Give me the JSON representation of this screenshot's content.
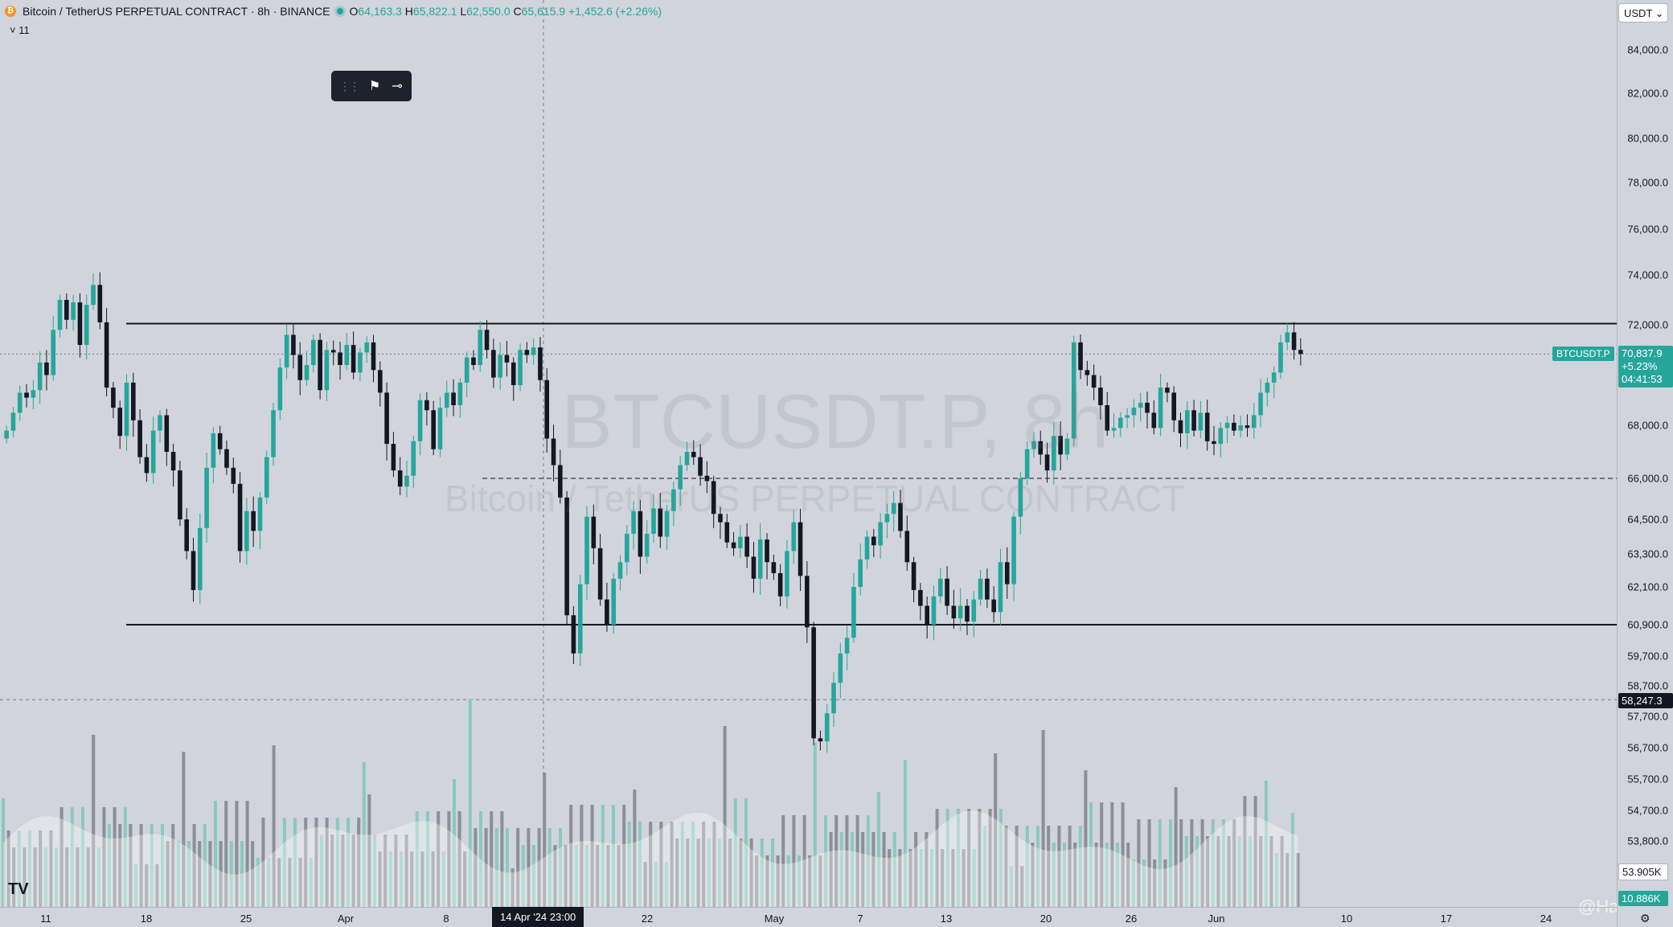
{
  "legend": {
    "symbol": "Bitcoin / TetherUS PERPETUAL CONTRACT · 8h · BINANCE",
    "o_label": "O",
    "o_value": "64,163.3",
    "h_label": "H",
    "h_value": "65,822.1",
    "l_label": "L",
    "l_value": "62,550.0",
    "c_label": "C",
    "c_value": "65,615.9",
    "change": "+1,452.6 (+2.26%)",
    "indicator_toggle": "˅ 11"
  },
  "watermark": {
    "ticker": "BTCUSDT.P, 8h",
    "name": "Bitcoin / TetherUS PERPETUAL CONTRACT"
  },
  "currency_select": "USDT ⌄",
  "price_axis": {
    "ticks": [
      "84,000.0",
      "82,000.0",
      "80,000.0",
      "78,000.0",
      "76,000.0",
      "74,000.0",
      "72,000.0",
      "68,000.0",
      "66,000.0",
      "64,500.0",
      "63,300.0",
      "62,100.0",
      "60,900.0",
      "59,700.0",
      "58,700.0",
      "57,700.0",
      "56,700.0",
      "55,700.0",
      "54,700.0",
      "53,800.0"
    ],
    "last_price": "70,837.9",
    "last_change": "+5.23%",
    "countdown": "04:41:53",
    "symbol_tag": "BTCUSDT.P",
    "crosshair_price": "58,247.3",
    "volume_ma": "53.905K",
    "volume": "10.886K"
  },
  "time_axis": {
    "ticks": [
      "11",
      "18",
      "25",
      "Apr",
      "8",
      "22",
      "May",
      "7",
      "13",
      "20",
      "26",
      "Jun",
      "10",
      "17",
      "24"
    ],
    "crosshair_time": "14 Apr '24   23:00"
  },
  "drawing_toolbar": {
    "grip": "⋮⋮",
    "tool1": "⚑",
    "tool2": "⊸"
  },
  "credit": "@Hanz",
  "tv_logo": "TV",
  "chart_data": {
    "type": "candlestick",
    "title": "Bitcoin / TetherUS PERPETUAL CONTRACT · 8h · BINANCE",
    "timeframe": "8h",
    "ylim": [
      55500,
      84500
    ],
    "up_color": "#26a69a",
    "down_color": "#131722",
    "support_level": 60900,
    "resistance_level": 72050,
    "mid_level": 66000,
    "last_price": 70837.9,
    "crosshair_price": 58247.3,
    "closes": [
      67800,
      68500,
      69300,
      69100,
      69400,
      70500,
      70000,
      71800,
      73000,
      72200,
      72900,
      71200,
      72800,
      73600,
      72100,
      69500,
      68700,
      67600,
      69700,
      68200,
      66800,
      66200,
      67800,
      68400,
      67000,
      66300,
      64500,
      63400,
      62000,
      64200,
      66400,
      67700,
      67100,
      66400,
      65800,
      63400,
      64800,
      64100,
      65300,
      66800,
      68600,
      70300,
      71600,
      70800,
      69800,
      70400,
      71400,
      69400,
      71000,
      70900,
      70400,
      71200,
      70100,
      70900,
      71300,
      70200,
      69300,
      67300,
      66300,
      65700,
      66100,
      67400,
      69000,
      68600,
      67100,
      68700,
      69300,
      68800,
      69700,
      70700,
      70400,
      71800,
      71000,
      69900,
      70800,
      70500,
      69600,
      71000,
      70800,
      71100,
      69800,
      67500,
      66500,
      65300,
      61200,
      59800,
      62200,
      64600,
      63500,
      61700,
      60900,
      62400,
      63000,
      64000,
      64800,
      63200,
      64000,
      64900,
      63900,
      64800,
      65600,
      66500,
      67000,
      66800,
      66100,
      65900,
      64700,
      64400,
      63700,
      63500,
      63900,
      63200,
      62400,
      63800,
      63000,
      62600,
      61800,
      63400,
      64400,
      62500,
      60800,
      57000,
      56900,
      57800,
      58800,
      59800,
      60400,
      62100,
      63100,
      63900,
      63600,
      64400,
      64700,
      65100,
      64100,
      63000,
      62000,
      61500,
      60900,
      61800,
      62400,
      61500,
      61100,
      61500,
      61000,
      61700,
      62400,
      61700,
      61300,
      63000,
      62200,
      64600,
      66000,
      67100,
      67400,
      66900,
      66300,
      67600,
      66900,
      67500,
      71300,
      70200,
      70000,
      69500,
      68800,
      67800,
      67900,
      68300,
      68400,
      68700,
      68900,
      68500,
      67900,
      69500,
      69300,
      68200,
      67700,
      68600,
      67800,
      68500,
      67400,
      67300,
      67900,
      68100,
      67800,
      68000,
      67900,
      68400,
      69300,
      69700,
      70100,
      71300,
      71700,
      71000,
      70837.9
    ],
    "volume_bars": 245
  }
}
